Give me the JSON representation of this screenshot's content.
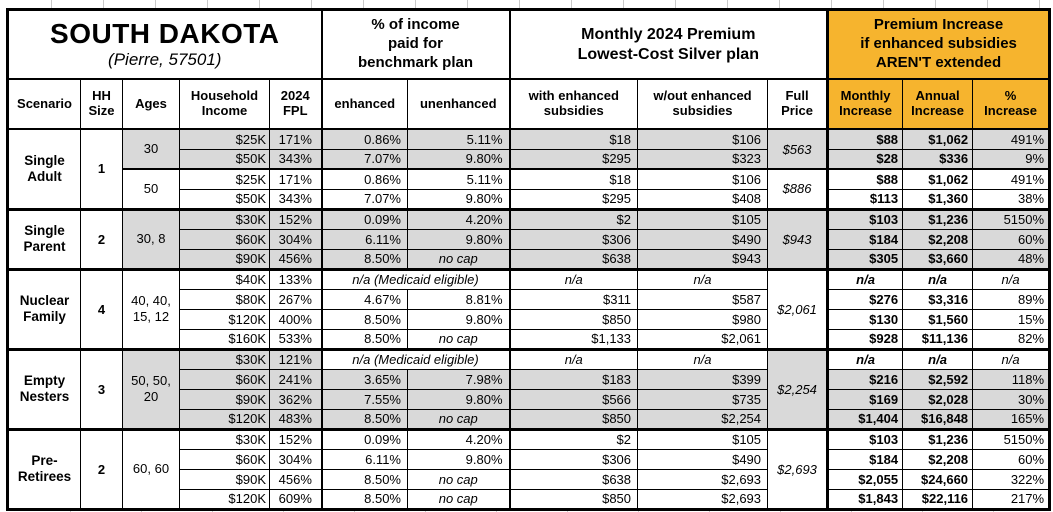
{
  "colors": {
    "gray_fill": "#D9D9D9",
    "orange_fill": "#F6B42E",
    "border": "#000000",
    "background": "#FFFFFF"
  },
  "header": {
    "title": "SOUTH DAKOTA",
    "subtitle": "(Pierre, 57501)",
    "group_benchmark": "% of income\npaid for\nbenchmark plan",
    "group_premium": "Monthly 2024 Premium\nLowest-Cost Silver plan",
    "group_increase": "Premium Increase\nif enhanced subsidies\nAREN'T extended",
    "columns": {
      "scenario": "Scenario",
      "hh_size": "HH\nSize",
      "ages": "Ages",
      "income": "Household\nIncome",
      "fpl": "2024\nFPL",
      "enhanced": "enhanced",
      "unenhanced": "unenhanced",
      "with_sub": "with enhanced\nsubsidies",
      "wout_sub": "w/out enhanced\nsubsidies",
      "full_price": "Full\nPrice",
      "monthly": "Monthly\nIncrease",
      "annual": "Annual\nIncrease",
      "pct": "%\nIncrease"
    }
  },
  "sections": [
    {
      "scenario": "Single\nAdult",
      "hh_size": "1",
      "subgroups": [
        {
          "ages": "30",
          "shade": "gray",
          "full_price": "$563",
          "rows": [
            {
              "income": "$25K",
              "fpl": "171%",
              "enhanced": "0.86%",
              "unenhanced": "5.11%",
              "with_sub": "$18",
              "wout_sub": "$106",
              "monthly": "$88",
              "annual": "$1,062",
              "pct": "491%"
            },
            {
              "income": "$50K",
              "fpl": "343%",
              "enhanced": "7.07%",
              "unenhanced": "9.80%",
              "with_sub": "$295",
              "wout_sub": "$323",
              "monthly": "$28",
              "annual": "$336",
              "pct": "9%"
            }
          ]
        },
        {
          "ages": "50",
          "shade": "white",
          "full_price": "$886",
          "rows": [
            {
              "income": "$25K",
              "fpl": "171%",
              "enhanced": "0.86%",
              "unenhanced": "5.11%",
              "with_sub": "$18",
              "wout_sub": "$106",
              "monthly": "$88",
              "annual": "$1,062",
              "pct": "491%"
            },
            {
              "income": "$50K",
              "fpl": "343%",
              "enhanced": "7.07%",
              "unenhanced": "9.80%",
              "with_sub": "$295",
              "wout_sub": "$408",
              "monthly": "$113",
              "annual": "$1,360",
              "pct": "38%"
            }
          ]
        }
      ]
    },
    {
      "scenario": "Single\nParent",
      "hh_size": "2",
      "subgroups": [
        {
          "ages": "30, 8",
          "shade": "gray",
          "full_price": "$943",
          "rows": [
            {
              "income": "$30K",
              "fpl": "152%",
              "enhanced": "0.09%",
              "unenhanced": "4.20%",
              "with_sub": "$2",
              "wout_sub": "$105",
              "monthly": "$103",
              "annual": "$1,236",
              "pct": "5150%"
            },
            {
              "income": "$60K",
              "fpl": "304%",
              "enhanced": "6.11%",
              "unenhanced": "9.80%",
              "with_sub": "$306",
              "wout_sub": "$490",
              "monthly": "$184",
              "annual": "$2,208",
              "pct": "60%"
            },
            {
              "income": "$90K",
              "fpl": "456%",
              "enhanced": "8.50%",
              "unenhanced": "no cap",
              "with_sub": "$638",
              "wout_sub": "$943",
              "monthly": "$305",
              "annual": "$3,660",
              "pct": "48%"
            }
          ]
        }
      ]
    },
    {
      "scenario": "Nuclear\nFamily",
      "hh_size": "4",
      "subgroups": [
        {
          "ages": "40, 40,\n15, 12",
          "shade": "white",
          "full_price": "$2,061",
          "rows": [
            {
              "income": "$40K",
              "fpl": "133%",
              "medicaid": true,
              "medicaid_label": "n/a (Medicaid eligible)",
              "with_sub": "n/a",
              "wout_sub": "n/a",
              "monthly": "n/a",
              "annual": "n/a",
              "pct": "n/a"
            },
            {
              "income": "$80K",
              "fpl": "267%",
              "enhanced": "4.67%",
              "unenhanced": "8.81%",
              "with_sub": "$311",
              "wout_sub": "$587",
              "monthly": "$276",
              "annual": "$3,316",
              "pct": "89%"
            },
            {
              "income": "$120K",
              "fpl": "400%",
              "enhanced": "8.50%",
              "unenhanced": "9.80%",
              "with_sub": "$850",
              "wout_sub": "$980",
              "monthly": "$130",
              "annual": "$1,560",
              "pct": "15%"
            },
            {
              "income": "$160K",
              "fpl": "533%",
              "enhanced": "8.50%",
              "unenhanced": "no cap",
              "with_sub": "$1,133",
              "wout_sub": "$2,061",
              "monthly": "$928",
              "annual": "$11,136",
              "pct": "82%"
            }
          ]
        }
      ]
    },
    {
      "scenario": "Empty\nNesters",
      "hh_size": "3",
      "subgroups": [
        {
          "ages": "50, 50,\n20",
          "shade": "gray",
          "full_price": "$2,254",
          "rows": [
            {
              "income": "$30K",
              "fpl": "121%",
              "medicaid": true,
              "medicaid_label": "n/a (Medicaid eligible)",
              "with_sub": "n/a",
              "wout_sub": "n/a",
              "monthly": "n/a",
              "annual": "n/a",
              "pct": "n/a"
            },
            {
              "income": "$60K",
              "fpl": "241%",
              "enhanced": "3.65%",
              "unenhanced": "7.98%",
              "with_sub": "$183",
              "wout_sub": "$399",
              "monthly": "$216",
              "annual": "$2,592",
              "pct": "118%"
            },
            {
              "income": "$90K",
              "fpl": "362%",
              "enhanced": "7.55%",
              "unenhanced": "9.80%",
              "with_sub": "$566",
              "wout_sub": "$735",
              "monthly": "$169",
              "annual": "$2,028",
              "pct": "30%"
            },
            {
              "income": "$120K",
              "fpl": "483%",
              "enhanced": "8.50%",
              "unenhanced": "no cap",
              "with_sub": "$850",
              "wout_sub": "$2,254",
              "monthly": "$1,404",
              "annual": "$16,848",
              "pct": "165%"
            }
          ]
        }
      ]
    },
    {
      "scenario": "Pre-\nRetirees",
      "hh_size": "2",
      "subgroups": [
        {
          "ages": "60, 60",
          "shade": "white",
          "full_price": "$2,693",
          "rows": [
            {
              "income": "$30K",
              "fpl": "152%",
              "enhanced": "0.09%",
              "unenhanced": "4.20%",
              "with_sub": "$2",
              "wout_sub": "$105",
              "monthly": "$103",
              "annual": "$1,236",
              "pct": "5150%"
            },
            {
              "income": "$60K",
              "fpl": "304%",
              "enhanced": "6.11%",
              "unenhanced": "9.80%",
              "with_sub": "$306",
              "wout_sub": "$490",
              "monthly": "$184",
              "annual": "$2,208",
              "pct": "60%"
            },
            {
              "income": "$90K",
              "fpl": "456%",
              "enhanced": "8.50%",
              "unenhanced": "no cap",
              "with_sub": "$638",
              "wout_sub": "$2,693",
              "monthly": "$2,055",
              "annual": "$24,660",
              "pct": "322%"
            },
            {
              "income": "$120K",
              "fpl": "609%",
              "enhanced": "8.50%",
              "unenhanced": "no cap",
              "with_sub": "$850",
              "wout_sub": "$2,693",
              "monthly": "$1,843",
              "annual": "$22,116",
              "pct": "217%"
            }
          ]
        }
      ]
    }
  ]
}
